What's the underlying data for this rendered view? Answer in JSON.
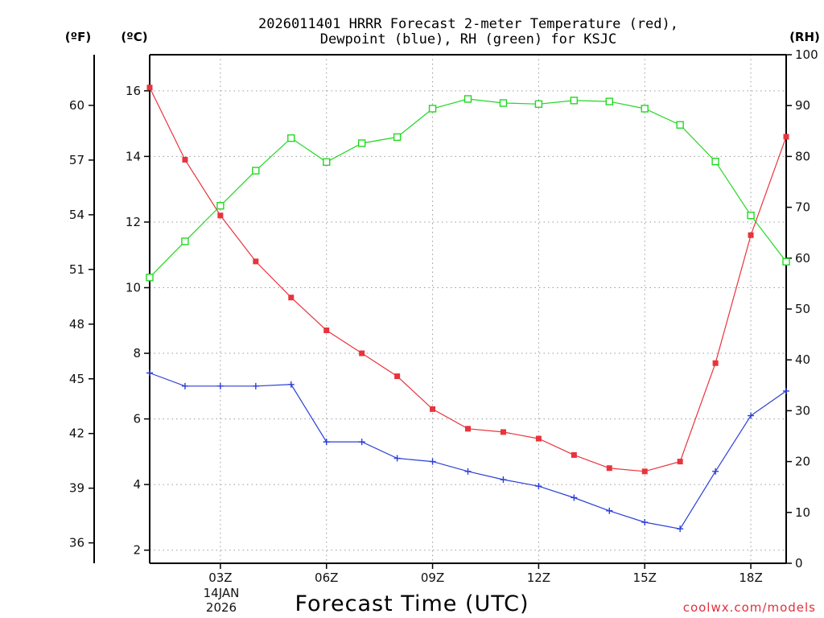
{
  "chart_data": {
    "type": "line",
    "title_line1": "2026011401 HRRR Forecast 2-meter Temperature (red),",
    "title_line2": "Dewpoint (blue), RH (green) for KSJC",
    "xlabel": "Forecast Time (UTC)",
    "credit": "coolwx.com/models",
    "date_line1": "14JAN",
    "date_line2": "2026",
    "units": {
      "fahrenheit": "(ºF)",
      "celsius": "(ºC)",
      "rh": "(RH)"
    },
    "x": [
      1,
      2,
      3,
      4,
      5,
      6,
      7,
      8,
      9,
      10,
      11,
      12,
      13,
      14,
      15,
      16,
      17,
      18,
      19
    ],
    "xlim": [
      1,
      19
    ],
    "x_ticks": [
      {
        "value": 3,
        "label": "03Z"
      },
      {
        "value": 6,
        "label": "06Z"
      },
      {
        "value": 9,
        "label": "09Z"
      },
      {
        "value": 12,
        "label": "12Z"
      },
      {
        "value": 15,
        "label": "15Z"
      },
      {
        "value": 18,
        "label": "18Z"
      }
    ],
    "y_celsius": {
      "lim": [
        1.6,
        17.1
      ],
      "ticks": [
        "2",
        "4",
        "6",
        "8",
        "10",
        "12",
        "14",
        "16"
      ]
    },
    "y_fahrenheit": {
      "ticks": [
        "36",
        "39",
        "42",
        "45",
        "48",
        "51",
        "54",
        "57",
        "60"
      ]
    },
    "y_rh": {
      "lim": [
        0,
        100
      ],
      "ticks": [
        "0",
        "10",
        "20",
        "30",
        "40",
        "50",
        "60",
        "70",
        "80",
        "90",
        "100"
      ]
    },
    "series": [
      {
        "name": "Temperature",
        "axis": "celsius",
        "color": "#e8343c",
        "marker": "filled-square",
        "values": [
          16.1,
          13.9,
          12.2,
          10.8,
          9.7,
          8.7,
          8.0,
          7.3,
          6.3,
          5.7,
          5.6,
          5.4,
          4.9,
          4.5,
          4.4,
          4.7,
          7.7,
          11.6,
          14.6
        ]
      },
      {
        "name": "Dewpoint",
        "axis": "celsius",
        "color": "#2b3fd8",
        "marker": "plus",
        "values": [
          7.4,
          7.0,
          7.0,
          7.0,
          7.05,
          5.3,
          5.3,
          4.8,
          4.7,
          4.4,
          4.15,
          3.95,
          3.6,
          3.2,
          2.85,
          2.65,
          4.4,
          6.1,
          6.85
        ]
      },
      {
        "name": "RH",
        "axis": "rh",
        "color": "#21d821",
        "marker": "open-square",
        "values": [
          56.2,
          63.3,
          70.3,
          77.2,
          83.6,
          78.9,
          82.6,
          83.8,
          89.4,
          91.3,
          90.5,
          90.3,
          91.0,
          90.8,
          89.4,
          86.2,
          79.0,
          68.4,
          59.3
        ]
      }
    ]
  }
}
